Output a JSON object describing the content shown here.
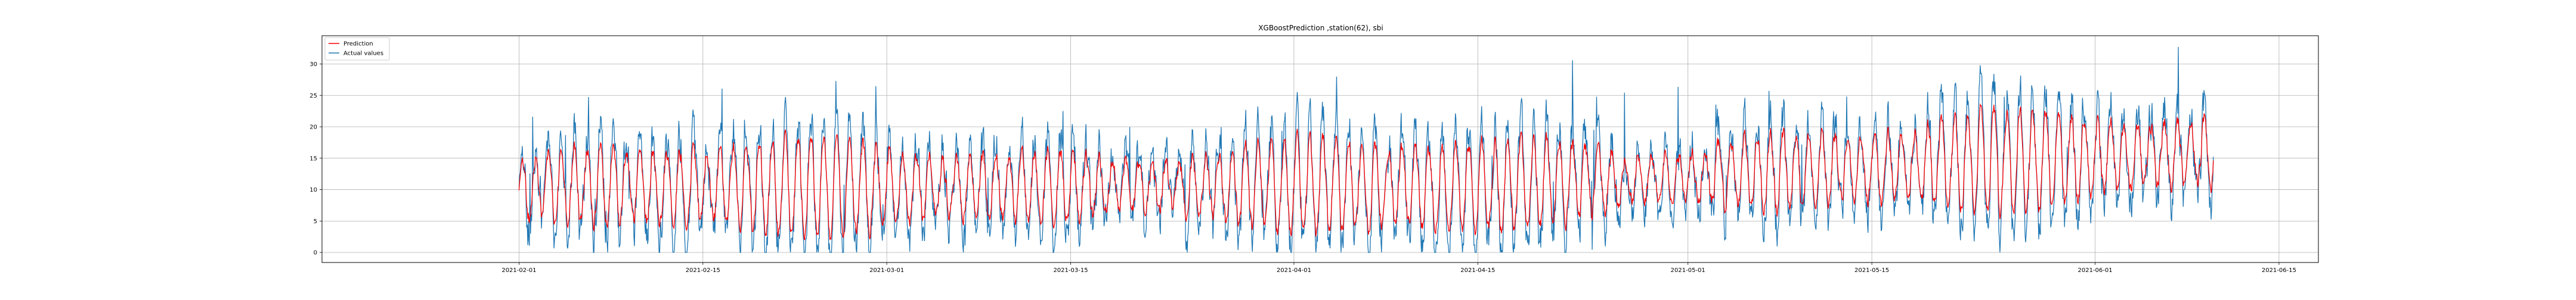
{
  "chart_data": {
    "type": "line",
    "title": "XGBoostPrediction ,station(62), sbi",
    "xlabel": "",
    "ylabel": "",
    "x_range": [
      "2021-01-17",
      "2021-06-18"
    ],
    "x_start": "2021-02-01",
    "x_end": "2021-06-10",
    "x_ticks": [
      "2021-02-01",
      "2021-02-15",
      "2021-03-01",
      "2021-03-15",
      "2021-04-01",
      "2021-04-15",
      "2021-05-01",
      "2021-05-15",
      "2021-06-01",
      "2021-06-15"
    ],
    "ylim": [
      -1.6,
      34.5
    ],
    "y_ticks": [
      0,
      5,
      10,
      15,
      20,
      25,
      30
    ],
    "grid": true,
    "legend": "top-left",
    "series": [
      {
        "name": "Prediction",
        "color": "#ff0000"
      },
      {
        "name": "Actual values",
        "color": "#1f77b4"
      }
    ]
  }
}
